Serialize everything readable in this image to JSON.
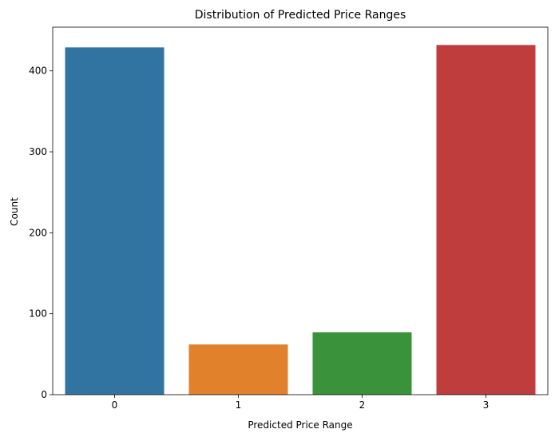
{
  "chart_data": {
    "type": "bar",
    "title": "Distribution of Predicted Price Ranges",
    "xlabel": "Predicted Price Range",
    "ylabel": "Count",
    "categories": [
      "0",
      "1",
      "2",
      "3"
    ],
    "values": [
      429,
      62,
      77,
      432
    ],
    "colors": [
      "#3274a1",
      "#e1812c",
      "#3a923a",
      "#c03d3e"
    ],
    "ylim": [
      0,
      454
    ],
    "yticks": [
      0,
      100,
      200,
      300,
      400
    ],
    "grid": false,
    "legend": "none"
  }
}
